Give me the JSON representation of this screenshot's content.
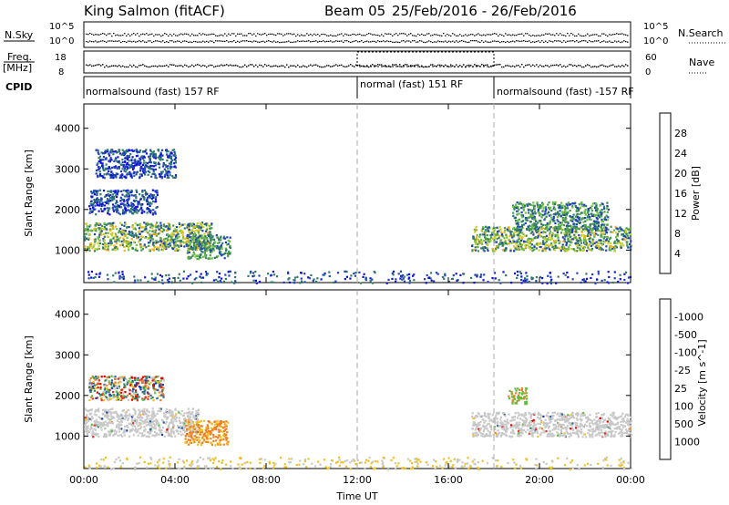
{
  "header": {
    "station": "King Salmon (fitACF)",
    "beam": "Beam 05",
    "date_range": "25/Feb/2016 - 26/Feb/2016"
  },
  "top_panel": {
    "nsky_label": "N.Sky",
    "nsky_ticks": [
      "10^5",
      "10^0"
    ],
    "nsearch_label": "N.Search",
    "nsearch_ticks": [
      "10^5",
      "10^0"
    ],
    "freq_label": "Freq.",
    "freq_unit": "[MHz]",
    "freq_ticks": [
      "18",
      "8"
    ],
    "nave_label": "Nave",
    "nave_ticks": [
      "60",
      "0"
    ],
    "cpid_label": "CPID",
    "cpid_segments": [
      {
        "label": "normalsound (fast) 157 RF",
        "start_hr": 0,
        "end_hr": 12
      },
      {
        "label": "normal (fast) 151 RF",
        "start_hr": 12,
        "end_hr": 18
      },
      {
        "label": "normalsound (fast) -157 RF",
        "start_hr": 18,
        "end_hr": 24
      }
    ]
  },
  "chart_data": [
    {
      "type": "heatmap",
      "panel": "power",
      "ylabel": "Slant Range [km]",
      "yticks": [
        "1000",
        "2000",
        "3000",
        "4000"
      ],
      "ylim": [
        200,
        4600
      ],
      "xlim_hr": [
        0,
        24
      ],
      "colorbar_label": "Power [dB]",
      "colorbar_ticks": [
        "4",
        "8",
        "12",
        "16",
        "20",
        "24",
        "28"
      ],
      "colorbar_colors": [
        "#1010e0",
        "#2040c0",
        "#2e7a6a",
        "#4a9a4a",
        "#6cc040",
        "#c8d020",
        "#f0b020",
        "#f07020",
        "#e83020",
        "#e00000"
      ],
      "regions": [
        {
          "t0": 0.0,
          "t1": 5.6,
          "r0": 1000,
          "r1": 1700,
          "level": "high"
        },
        {
          "t0": 0.2,
          "t1": 3.2,
          "r0": 1900,
          "r1": 2500,
          "level": "low"
        },
        {
          "t0": 0.5,
          "t1": 4.0,
          "r0": 2800,
          "r1": 3500,
          "level": "low"
        },
        {
          "t0": 4.5,
          "t1": 6.4,
          "r0": 800,
          "r1": 1400,
          "level": "mid"
        },
        {
          "t0": 17.0,
          "t1": 24.0,
          "r0": 1000,
          "r1": 1600,
          "level": "high"
        },
        {
          "t0": 18.8,
          "t1": 23.0,
          "r0": 1500,
          "r1": 2200,
          "level": "mid"
        },
        {
          "t0": 0.0,
          "t1": 24.0,
          "r0": 200,
          "r1": 500,
          "level": "ground"
        }
      ]
    },
    {
      "type": "heatmap",
      "panel": "velocity",
      "ylabel": "Slant Range [km]",
      "yticks": [
        "1000",
        "2000",
        "3000",
        "4000"
      ],
      "ylim": [
        200,
        4600
      ],
      "xlim_hr": [
        0,
        24
      ],
      "xticks": [
        "00:00",
        "04:00",
        "08:00",
        "12:00",
        "16:00",
        "20:00",
        "00:00"
      ],
      "xlabel": "Time UT",
      "colorbar_label": "Velocity [m s^-1]",
      "colorbar_ticks": [
        "1000",
        "500",
        "100",
        "25",
        "-25",
        "-100",
        "-500",
        "-1000"
      ],
      "colorbar_colors": [
        "#1a3ab0",
        "#2a6aa0",
        "#2e8a5a",
        "#5ac040",
        "#c8c8c8",
        "#f0c020",
        "#f08020",
        "#e83020",
        "#e00000"
      ],
      "regions": [
        {
          "t0": 0.0,
          "t1": 5.0,
          "r0": 1000,
          "r1": 1700,
          "level": "gray"
        },
        {
          "t0": 0.2,
          "t1": 3.5,
          "r0": 1900,
          "r1": 2500,
          "level": "mixed"
        },
        {
          "t0": 4.4,
          "t1": 6.3,
          "r0": 800,
          "r1": 1400,
          "level": "orange"
        },
        {
          "t0": 17.0,
          "t1": 24.0,
          "r0": 1000,
          "r1": 1600,
          "level": "gray"
        },
        {
          "t0": 18.6,
          "t1": 19.4,
          "r0": 1800,
          "r1": 2200,
          "level": "green-orange"
        },
        {
          "t0": 0.0,
          "t1": 24.0,
          "r0": 200,
          "r1": 500,
          "level": "ground"
        }
      ]
    }
  ],
  "vertical_markers_hr": [
    12,
    18
  ]
}
